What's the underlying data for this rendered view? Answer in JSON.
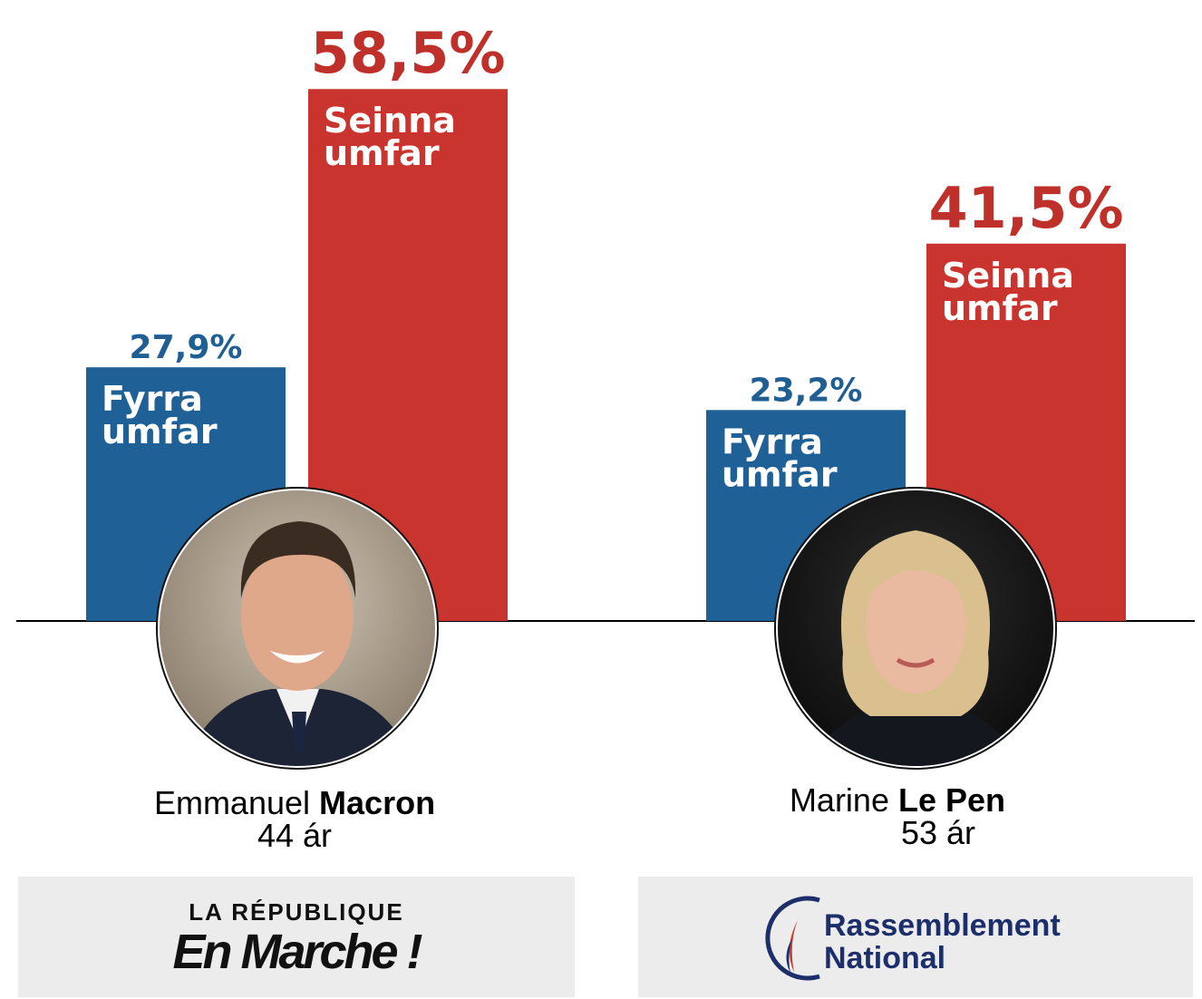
{
  "chart_data": {
    "type": "bar",
    "title": "",
    "xlabel": "",
    "ylabel": "",
    "ylim": [
      0,
      68
    ],
    "series": [
      {
        "name": "Fyrra umfar",
        "label_lines": [
          "Fyrra",
          "umfar"
        ],
        "color": "#1f6096",
        "value_color": "#1f5f94",
        "values": [
          27.9,
          23.2
        ],
        "value_labels": [
          "27,9%",
          "23,2%"
        ]
      },
      {
        "name": "Seinna umfar",
        "label_lines": [
          "Seinna",
          "umfar"
        ],
        "color": "#c9342f",
        "value_color": "#c0302b",
        "values": [
          58.5,
          41.5
        ],
        "value_labels": [
          "58,5%",
          "41,5%"
        ]
      }
    ],
    "categories": [
      "Emmanuel Macron",
      "Marine Le Pen"
    ]
  },
  "candidates": [
    {
      "first": "Emmanuel",
      "last": "Macron",
      "age": "44 ár",
      "party_line1": "LA RÉPUBLIQUE",
      "party_line2": "En Marche !"
    },
    {
      "first": "Marine",
      "last": "Le Pen",
      "age": "53 ár",
      "party_line1": "Rassemblement",
      "party_line2": "National"
    }
  ]
}
